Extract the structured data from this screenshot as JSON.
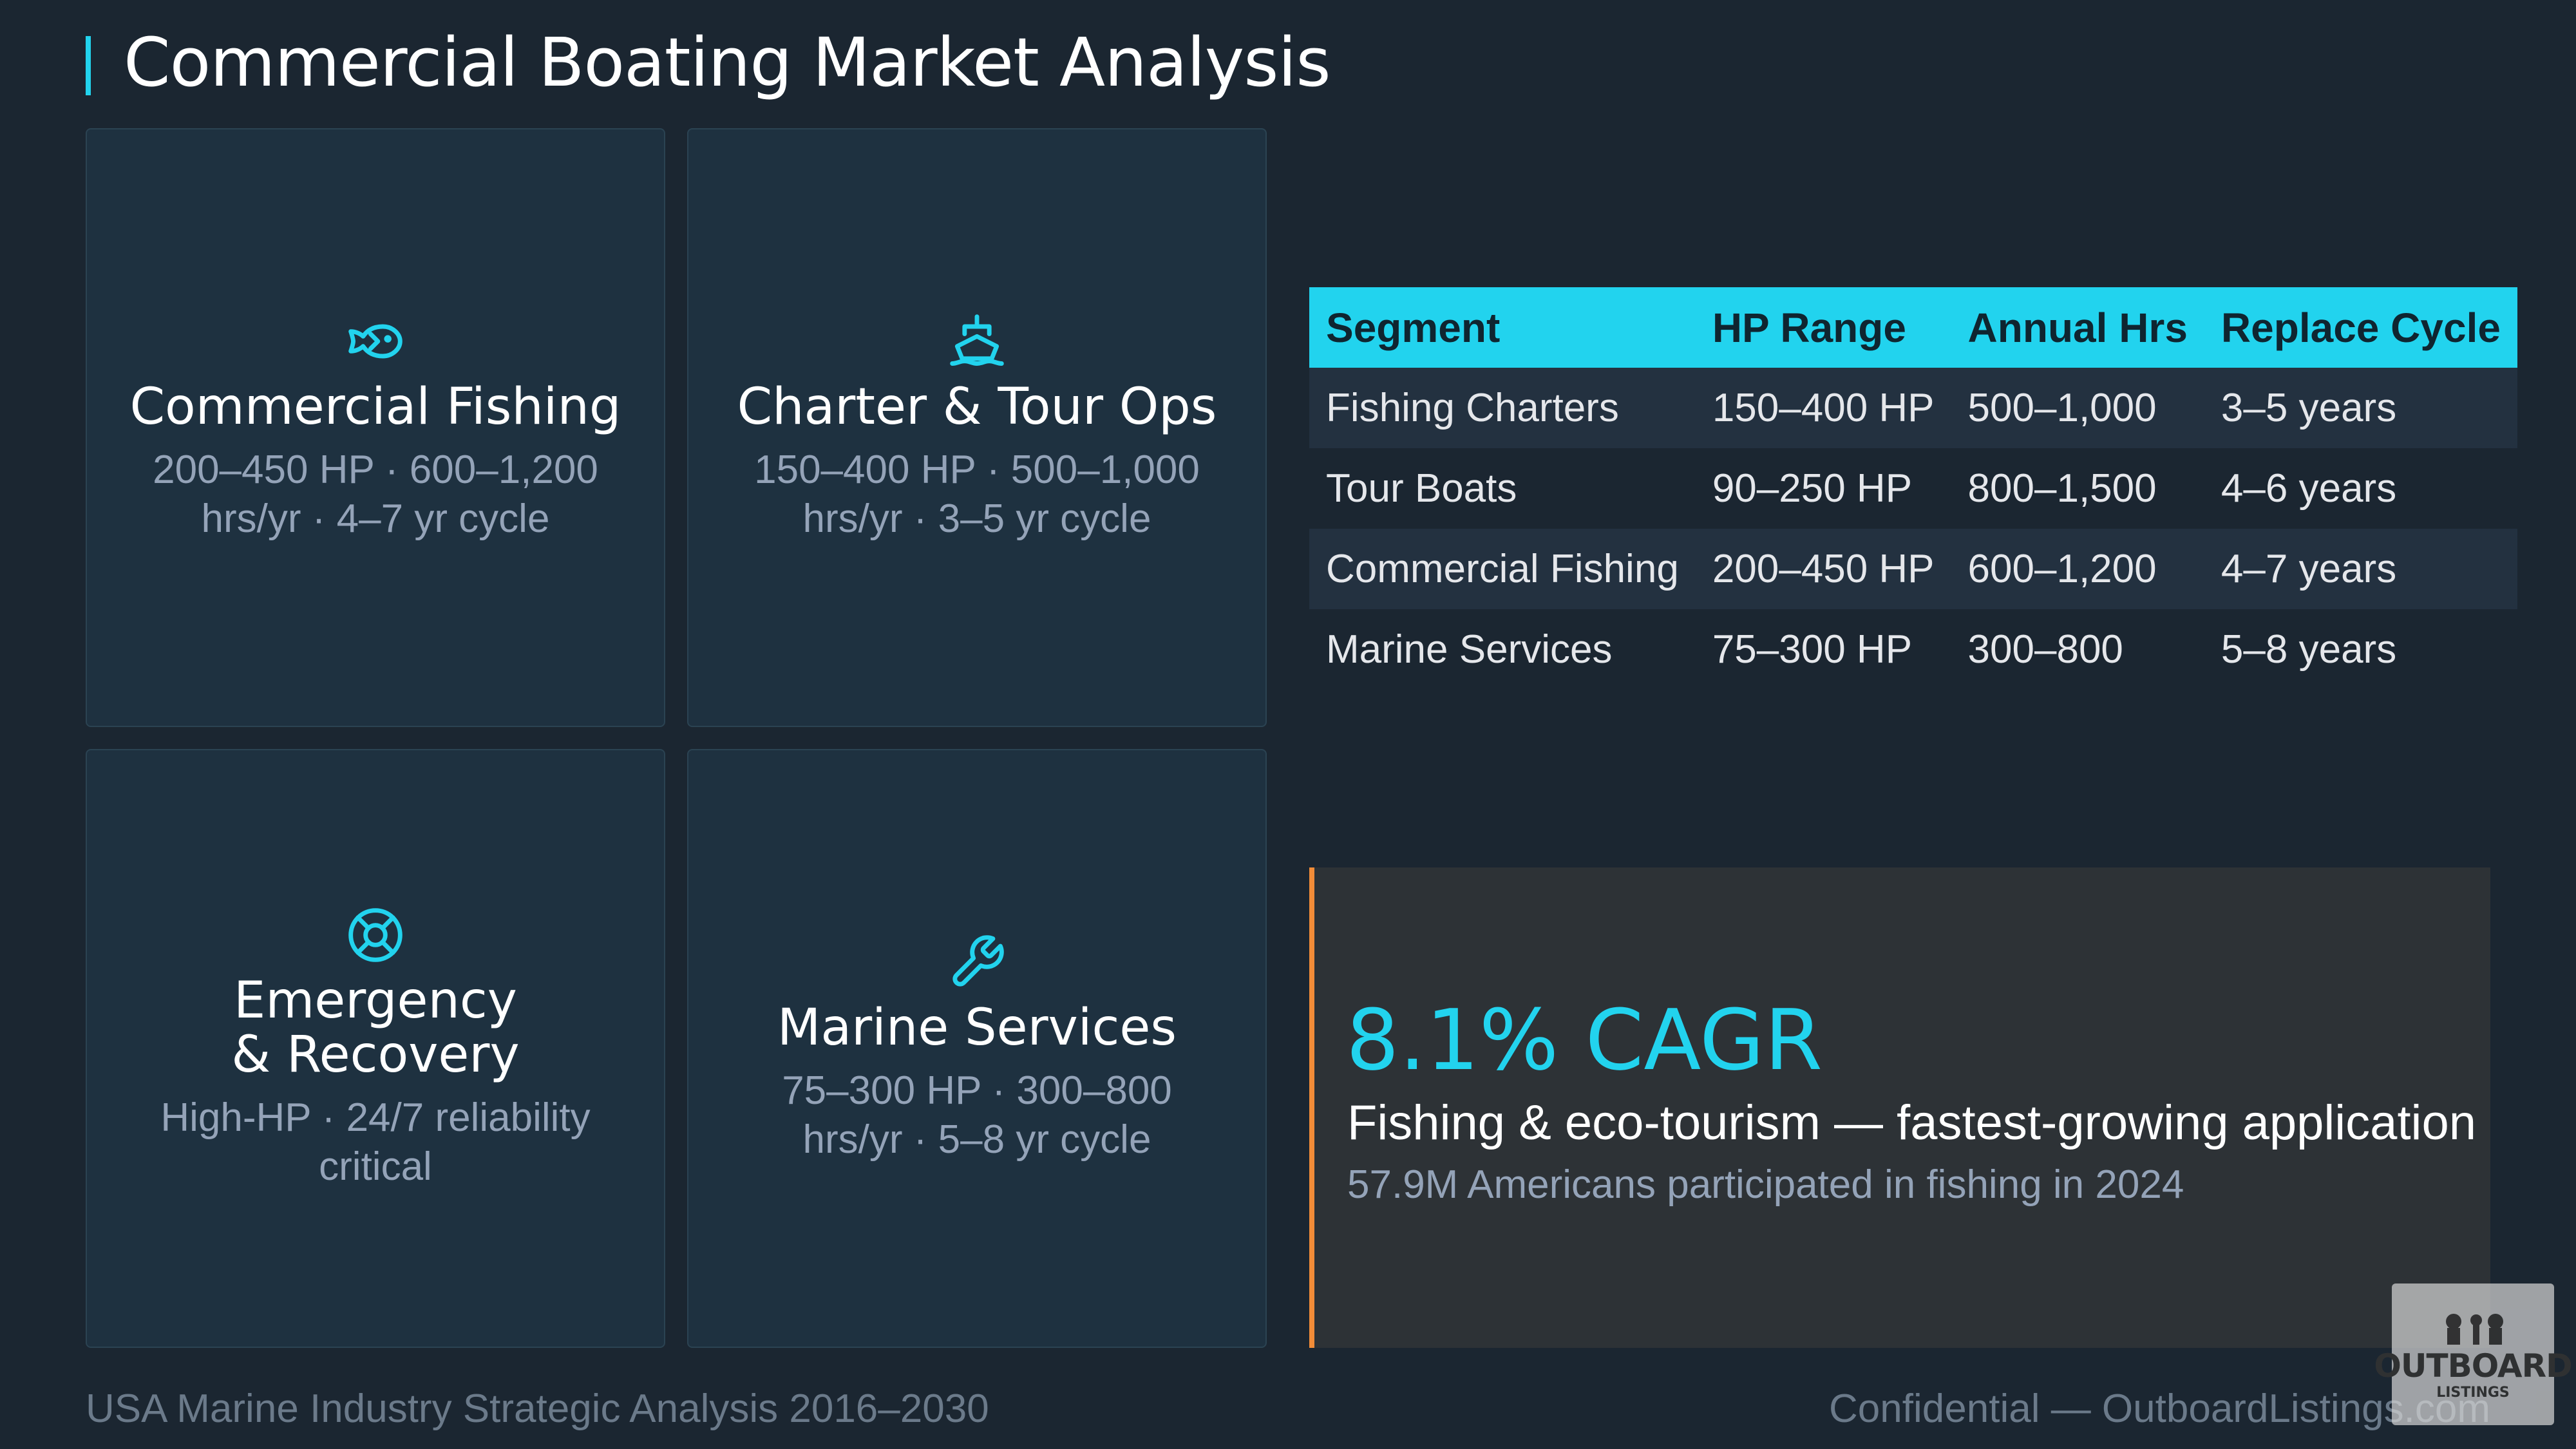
{
  "header": {
    "title": "Commercial Boating Market Analysis"
  },
  "cards": [
    {
      "icon": "fish-icon",
      "title": "Commercial Fishing",
      "desc": "200–450 HP · 600–1,200 hrs/yr · 4–7 yr cycle"
    },
    {
      "icon": "ship-icon",
      "title": "Charter & Tour Ops",
      "desc": "150–400 HP · 500–1,000 hrs/yr · 3–5 yr cycle"
    },
    {
      "icon": "life-ring-icon",
      "title": "Emergency & Recovery",
      "desc": "High-HP · 24/7 reliability critical"
    },
    {
      "icon": "wrench-icon",
      "title": "Marine Services",
      "desc": "75–300 HP · 300–800 hrs/yr · 5–8 yr cycle"
    }
  ],
  "table": {
    "headers": [
      "Segment",
      "HP Range",
      "Annual Hrs",
      "Replace Cycle"
    ],
    "rows": [
      [
        "Fishing Charters",
        "150–400 HP",
        "500–1,000",
        "3–5 years"
      ],
      [
        "Tour Boats",
        "90–250 HP",
        "800–1,500",
        "4–6 years"
      ],
      [
        "Commercial Fishing",
        "200–450 HP",
        "600–1,200",
        "4–7 years"
      ],
      [
        "Marine Services",
        "75–300 HP",
        "300–800",
        "5–8 years"
      ]
    ]
  },
  "highlight": {
    "metric": "8.1% CAGR",
    "text": "Fishing & eco-tourism — fastest-growing application",
    "sub": "57.9M Americans participated in fishing in 2024"
  },
  "footer": {
    "left": "USA Marine Industry Strategic Analysis 2016–2030",
    "right": "Confidential — OutboardListings.com"
  },
  "logo": {
    "text": "OUTBOARD",
    "sub": "LISTINGS"
  },
  "colors": {
    "accent": "#22d3ee",
    "highlight_border": "#f28c38",
    "background": "#1b2631"
  }
}
